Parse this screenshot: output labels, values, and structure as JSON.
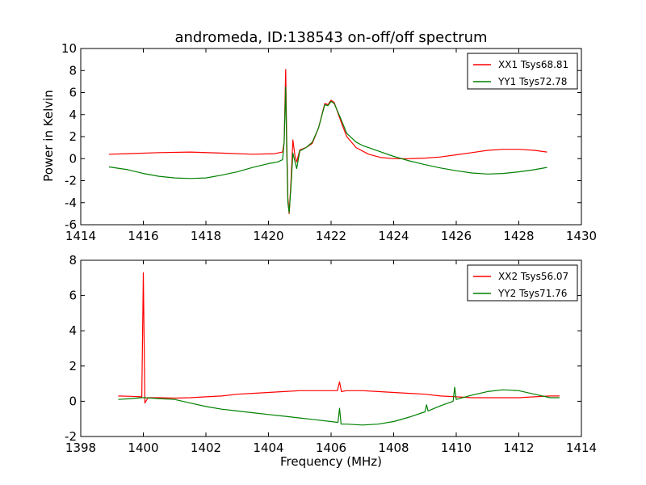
{
  "chart_data": [
    {
      "type": "line",
      "title": "andromeda, ID:138543 on-off/off spectrum",
      "xlabel": "",
      "ylabel": "Power in Kelvin",
      "xlim": [
        1414,
        1430
      ],
      "ylim": [
        -6,
        10
      ],
      "xticks": [
        1414,
        1416,
        1418,
        1420,
        1422,
        1424,
        1426,
        1428,
        1430
      ],
      "yticks": [
        -6,
        -4,
        -2,
        0,
        2,
        4,
        6,
        8,
        10
      ],
      "legend_position": "top-right",
      "grid": false,
      "series": [
        {
          "name": "XX1 Tsys68.81",
          "color": "#ff0000",
          "points": [
            [
              1414.9,
              0.4
            ],
            [
              1415.5,
              0.45
            ],
            [
              1416.5,
              0.55
            ],
            [
              1417.5,
              0.6
            ],
            [
              1418.5,
              0.5
            ],
            [
              1419.5,
              0.4
            ],
            [
              1420.2,
              0.45
            ],
            [
              1420.45,
              0.6
            ],
            [
              1420.5,
              1.5
            ],
            [
              1420.55,
              8.1
            ],
            [
              1420.58,
              2.0
            ],
            [
              1420.62,
              -3.5
            ],
            [
              1420.66,
              -5.0
            ],
            [
              1420.72,
              -2.0
            ],
            [
              1420.78,
              1.7
            ],
            [
              1420.85,
              0.2
            ],
            [
              1420.9,
              -0.3
            ],
            [
              1421.0,
              0.8
            ],
            [
              1421.2,
              1.0
            ],
            [
              1421.4,
              1.4
            ],
            [
              1421.6,
              2.8
            ],
            [
              1421.8,
              5.0
            ],
            [
              1421.9,
              4.9
            ],
            [
              1422.0,
              5.3
            ],
            [
              1422.1,
              5.1
            ],
            [
              1422.3,
              3.5
            ],
            [
              1422.5,
              2.0
            ],
            [
              1422.8,
              1.0
            ],
            [
              1423.2,
              0.4
            ],
            [
              1423.6,
              0.1
            ],
            [
              1424.0,
              0.0
            ],
            [
              1424.5,
              0.0
            ],
            [
              1425.0,
              0.05
            ],
            [
              1425.5,
              0.15
            ],
            [
              1426.0,
              0.35
            ],
            [
              1426.5,
              0.55
            ],
            [
              1427.0,
              0.75
            ],
            [
              1427.5,
              0.85
            ],
            [
              1428.0,
              0.85
            ],
            [
              1428.5,
              0.75
            ],
            [
              1428.9,
              0.6
            ]
          ]
        },
        {
          "name": "YY1 Tsys72.78",
          "color": "#008000",
          "points": [
            [
              1414.9,
              -0.75
            ],
            [
              1415.5,
              -1.0
            ],
            [
              1416.0,
              -1.35
            ],
            [
              1416.5,
              -1.6
            ],
            [
              1417.0,
              -1.75
            ],
            [
              1417.5,
              -1.8
            ],
            [
              1418.0,
              -1.75
            ],
            [
              1418.5,
              -1.5
            ],
            [
              1419.0,
              -1.2
            ],
            [
              1419.5,
              -0.8
            ],
            [
              1420.0,
              -0.45
            ],
            [
              1420.3,
              -0.3
            ],
            [
              1420.45,
              -0.1
            ],
            [
              1420.5,
              1.5
            ],
            [
              1420.55,
              6.5
            ],
            [
              1420.58,
              1.0
            ],
            [
              1420.62,
              -4.0
            ],
            [
              1420.66,
              -4.9
            ],
            [
              1420.72,
              -2.5
            ],
            [
              1420.78,
              0.5
            ],
            [
              1420.85,
              -0.3
            ],
            [
              1420.9,
              -0.9
            ],
            [
              1421.0,
              0.7
            ],
            [
              1421.2,
              1.0
            ],
            [
              1421.4,
              1.5
            ],
            [
              1421.6,
              2.8
            ],
            [
              1421.8,
              4.9
            ],
            [
              1421.9,
              4.8
            ],
            [
              1422.0,
              5.2
            ],
            [
              1422.1,
              5.0
            ],
            [
              1422.3,
              3.7
            ],
            [
              1422.5,
              2.3
            ],
            [
              1422.8,
              1.5
            ],
            [
              1423.0,
              1.2
            ],
            [
              1423.5,
              0.7
            ],
            [
              1424.0,
              0.2
            ],
            [
              1424.5,
              -0.2
            ],
            [
              1425.0,
              -0.55
            ],
            [
              1425.5,
              -0.85
            ],
            [
              1426.0,
              -1.1
            ],
            [
              1426.5,
              -1.3
            ],
            [
              1427.0,
              -1.4
            ],
            [
              1427.5,
              -1.35
            ],
            [
              1428.0,
              -1.2
            ],
            [
              1428.5,
              -1.0
            ],
            [
              1428.9,
              -0.8
            ]
          ]
        }
      ]
    },
    {
      "type": "line",
      "title": "",
      "xlabel": "Frequency (MHz)",
      "ylabel": "",
      "xlim": [
        1398,
        1414
      ],
      "ylim": [
        -2,
        8
      ],
      "xticks": [
        1398,
        1400,
        1402,
        1404,
        1406,
        1408,
        1410,
        1412,
        1414
      ],
      "yticks": [
        -2,
        0,
        2,
        4,
        6,
        8
      ],
      "legend_position": "top-right",
      "grid": false,
      "series": [
        {
          "name": "XX2 Tsys56.07",
          "color": "#ff0000",
          "points": [
            [
              1399.2,
              0.3
            ],
            [
              1399.6,
              0.28
            ],
            [
              1399.95,
              0.25
            ],
            [
              1400.0,
              7.3
            ],
            [
              1400.05,
              -0.1
            ],
            [
              1400.15,
              0.2
            ],
            [
              1400.5,
              0.2
            ],
            [
              1401.0,
              0.18
            ],
            [
              1401.5,
              0.2
            ],
            [
              1402.0,
              0.25
            ],
            [
              1402.5,
              0.3
            ],
            [
              1403.0,
              0.4
            ],
            [
              1403.5,
              0.45
            ],
            [
              1404.0,
              0.5
            ],
            [
              1404.5,
              0.55
            ],
            [
              1405.0,
              0.6
            ],
            [
              1405.5,
              0.6
            ],
            [
              1406.0,
              0.6
            ],
            [
              1406.2,
              0.6
            ],
            [
              1406.27,
              1.1
            ],
            [
              1406.33,
              0.55
            ],
            [
              1406.5,
              0.6
            ],
            [
              1407.0,
              0.6
            ],
            [
              1407.5,
              0.55
            ],
            [
              1408.0,
              0.5
            ],
            [
              1408.5,
              0.45
            ],
            [
              1409.0,
              0.4
            ],
            [
              1409.5,
              0.3
            ],
            [
              1410.0,
              0.25
            ],
            [
              1410.5,
              0.2
            ],
            [
              1411.0,
              0.2
            ],
            [
              1411.5,
              0.2
            ],
            [
              1412.0,
              0.2
            ],
            [
              1412.5,
              0.25
            ],
            [
              1413.0,
              0.3
            ],
            [
              1413.3,
              0.3
            ]
          ]
        },
        {
          "name": "YY2 Tsys71.76",
          "color": "#008000",
          "points": [
            [
              1399.2,
              0.1
            ],
            [
              1399.6,
              0.15
            ],
            [
              1399.95,
              0.2
            ],
            [
              1400.05,
              0.2
            ],
            [
              1400.5,
              0.15
            ],
            [
              1401.0,
              0.1
            ],
            [
              1401.5,
              -0.1
            ],
            [
              1402.0,
              -0.3
            ],
            [
              1402.5,
              -0.45
            ],
            [
              1403.0,
              -0.55
            ],
            [
              1403.5,
              -0.65
            ],
            [
              1404.0,
              -0.75
            ],
            [
              1404.5,
              -0.85
            ],
            [
              1405.0,
              -0.95
            ],
            [
              1405.5,
              -1.05
            ],
            [
              1406.0,
              -1.15
            ],
            [
              1406.22,
              -1.2
            ],
            [
              1406.27,
              -0.4
            ],
            [
              1406.32,
              -1.3
            ],
            [
              1406.5,
              -1.3
            ],
            [
              1407.0,
              -1.35
            ],
            [
              1407.5,
              -1.3
            ],
            [
              1408.0,
              -1.15
            ],
            [
              1408.5,
              -0.9
            ],
            [
              1409.0,
              -0.6
            ],
            [
              1409.05,
              -0.2
            ],
            [
              1409.1,
              -0.55
            ],
            [
              1409.5,
              -0.25
            ],
            [
              1409.9,
              0.0
            ],
            [
              1409.95,
              0.8
            ],
            [
              1410.0,
              0.1
            ],
            [
              1410.5,
              0.35
            ],
            [
              1411.0,
              0.55
            ],
            [
              1411.5,
              0.65
            ],
            [
              1412.0,
              0.6
            ],
            [
              1412.5,
              0.4
            ],
            [
              1413.0,
              0.2
            ],
            [
              1413.3,
              0.2
            ]
          ]
        }
      ]
    }
  ]
}
